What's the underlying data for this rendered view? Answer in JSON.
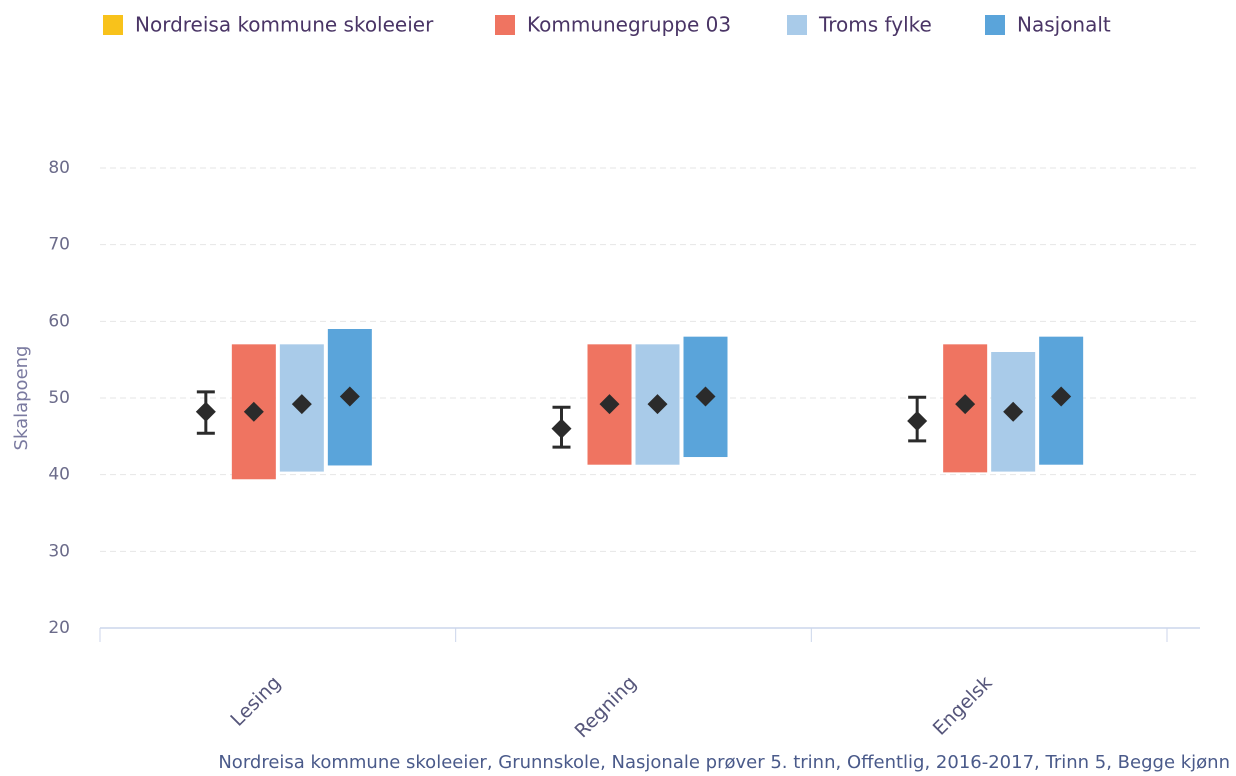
{
  "chart_data": {
    "type": "range_bar",
    "y_label": "Skalapoeng",
    "footnote": "Nordreisa kommune skoleeier, Grunnskole, Nasjonale prøver 5. trinn, Offentlig, 2016-2017, Trinn 5, Begge kjønn",
    "categories": [
      "Lesing",
      "Regning",
      "Engelsk"
    ],
    "series": [
      {
        "name": "Nordreisa kommune skoleeier",
        "color": "#f8c21b",
        "kind": "errorbar",
        "values": [
          48.2,
          46,
          47
        ],
        "low": [
          45.4,
          43.6,
          44.4
        ],
        "high": [
          50.8,
          48.8,
          50.1
        ]
      },
      {
        "name": "Kommunegruppe 03",
        "color": "#ef7461",
        "kind": "range",
        "values": [
          48.2,
          49.2,
          49.2
        ],
        "low": [
          39.4,
          41.3,
          40.3
        ],
        "high": [
          57,
          57,
          57
        ]
      },
      {
        "name": "Troms fylke",
        "color": "#a9cbe9",
        "kind": "range",
        "values": [
          49.2,
          49.2,
          48.2
        ],
        "low": [
          40.4,
          41.3,
          40.4
        ],
        "high": [
          57,
          57,
          56
        ]
      },
      {
        "name": "Nasjonalt",
        "color": "#5aa4da",
        "kind": "range",
        "values": [
          50.2,
          50.2,
          50.2
        ],
        "low": [
          41.2,
          42.3,
          41.3
        ],
        "high": [
          59,
          58,
          58
        ]
      }
    ],
    "ylim": [
      20,
      80
    ],
    "yticks": [
      20,
      30,
      40,
      50,
      60,
      70,
      80
    ],
    "grid": true
  }
}
